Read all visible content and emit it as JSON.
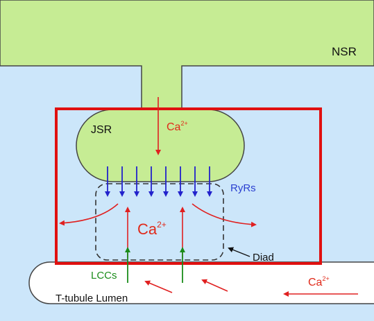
{
  "labels": {
    "nsr": "NSR",
    "jsr": "JSR",
    "ca_jsr_base": "Ca",
    "ca_jsr_sup": "2+",
    "ryrs": "RyRs",
    "ca_diad_base": "Ca",
    "ca_diad_sup": "2+",
    "diad": "Diad",
    "lccs": "LCCs",
    "ca_lumen_base": "Ca",
    "ca_lumen_sup": "2+",
    "t_tubule": "T-tubule Lumen"
  },
  "colors": {
    "cytosol": "#cce6fa",
    "sr_fill": "#c6ec94",
    "outline": "#444444",
    "ca_arrow": "#e02020",
    "ryr_arrow": "#2222cc",
    "lcc_arrow": "#1a8c1a",
    "highlight_box": "#e01010",
    "ryr_text": "#2a3fd0",
    "lcc_text": "#1a8c1a",
    "ca_text": "#e02a1a"
  },
  "icons": {
    "ryr_channels": "down-arrow-icon",
    "lcc_channels": "up-arrow-icon",
    "calcium_flux": "arrow-icon"
  }
}
